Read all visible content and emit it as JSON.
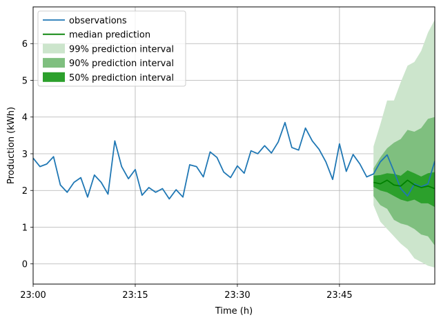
{
  "chart_data": {
    "type": "line",
    "xlabel": "Time (h)",
    "ylabel": "Production (kWh)",
    "xlim": [
      0,
      59
    ],
    "ylim": [
      -0.55,
      7.0
    ],
    "x_ticks": [
      {
        "value": 0,
        "label": "23:00"
      },
      {
        "value": 15,
        "label": "23:15"
      },
      {
        "value": 30,
        "label": "23:30"
      },
      {
        "value": 45,
        "label": "23:45"
      }
    ],
    "y_ticks": [
      0,
      1,
      2,
      3,
      4,
      5,
      6
    ],
    "grid": true,
    "legend_position": "top-left",
    "colors": {
      "observations": "#1f77b4",
      "median": "#008000",
      "band99": "#cce5cc",
      "band90": "#7fbf7f",
      "band50": "#2ca02c"
    },
    "series": [
      {
        "name": "observations",
        "x": [
          0,
          1,
          2,
          3,
          4,
          5,
          6,
          7,
          8,
          9,
          10,
          11,
          12,
          13,
          14,
          15,
          16,
          17,
          18,
          19,
          20,
          21,
          22,
          23,
          24,
          25,
          26,
          27,
          28,
          29,
          30,
          31,
          32,
          33,
          34,
          35,
          36,
          37,
          38,
          39,
          40,
          41,
          42,
          43,
          44,
          45,
          46,
          47,
          48,
          49,
          50,
          51,
          52,
          53,
          54,
          55,
          56,
          57,
          58,
          59
        ],
        "values": [
          2.88,
          2.65,
          2.72,
          2.92,
          2.15,
          1.95,
          2.22,
          2.35,
          1.82,
          2.42,
          2.22,
          1.9,
          3.35,
          2.65,
          2.32,
          2.57,
          1.87,
          2.08,
          1.95,
          2.05,
          1.77,
          2.02,
          1.82,
          2.7,
          2.65,
          2.37,
          3.05,
          2.9,
          2.5,
          2.35,
          2.67,
          2.47,
          3.08,
          3.0,
          3.22,
          3.02,
          3.32,
          3.85,
          3.17,
          3.1,
          3.7,
          3.35,
          3.12,
          2.78,
          2.3,
          3.27,
          2.52,
          2.98,
          2.72,
          2.37,
          2.45,
          2.78,
          2.97,
          2.52,
          2.05,
          1.85,
          2.18,
          2.1,
          2.18,
          2.8
        ]
      }
    ],
    "forecast": {
      "x": [
        50,
        51,
        52,
        53,
        54,
        55,
        56,
        57,
        58,
        59
      ],
      "median": [
        2.22,
        2.18,
        2.28,
        2.15,
        2.12,
        2.28,
        2.15,
        2.08,
        2.12,
        2.05
      ],
      "p50": {
        "lower": [
          2.1,
          2.0,
          1.95,
          1.85,
          1.75,
          1.7,
          1.75,
          1.65,
          1.65,
          1.55
        ],
        "upper": [
          2.4,
          2.42,
          2.47,
          2.45,
          2.4,
          2.55,
          2.47,
          2.38,
          2.47,
          2.5
        ]
      },
      "p90": {
        "lower": [
          1.85,
          1.6,
          1.5,
          1.2,
          1.1,
          1.05,
          0.95,
          0.8,
          0.75,
          0.5
        ],
        "upper": [
          2.6,
          2.9,
          3.15,
          3.3,
          3.4,
          3.65,
          3.6,
          3.7,
          3.95,
          4.0
        ]
      },
      "p99": {
        "lower": [
          1.6,
          1.15,
          0.95,
          0.75,
          0.55,
          0.4,
          0.15,
          0.05,
          -0.05,
          -0.1
        ],
        "upper": [
          3.2,
          3.8,
          4.45,
          4.45,
          4.95,
          5.4,
          5.5,
          5.8,
          6.3,
          6.65
        ]
      }
    },
    "legend": [
      {
        "label": "observations",
        "kind": "line",
        "color_key": "observations"
      },
      {
        "label": "median prediction",
        "kind": "line",
        "color_key": "median"
      },
      {
        "label": "99% prediction interval",
        "kind": "patch",
        "color_key": "band99"
      },
      {
        "label": "90% prediction interval",
        "kind": "patch",
        "color_key": "band90"
      },
      {
        "label": "50% prediction interval",
        "kind": "patch",
        "color_key": "band50"
      }
    ]
  }
}
